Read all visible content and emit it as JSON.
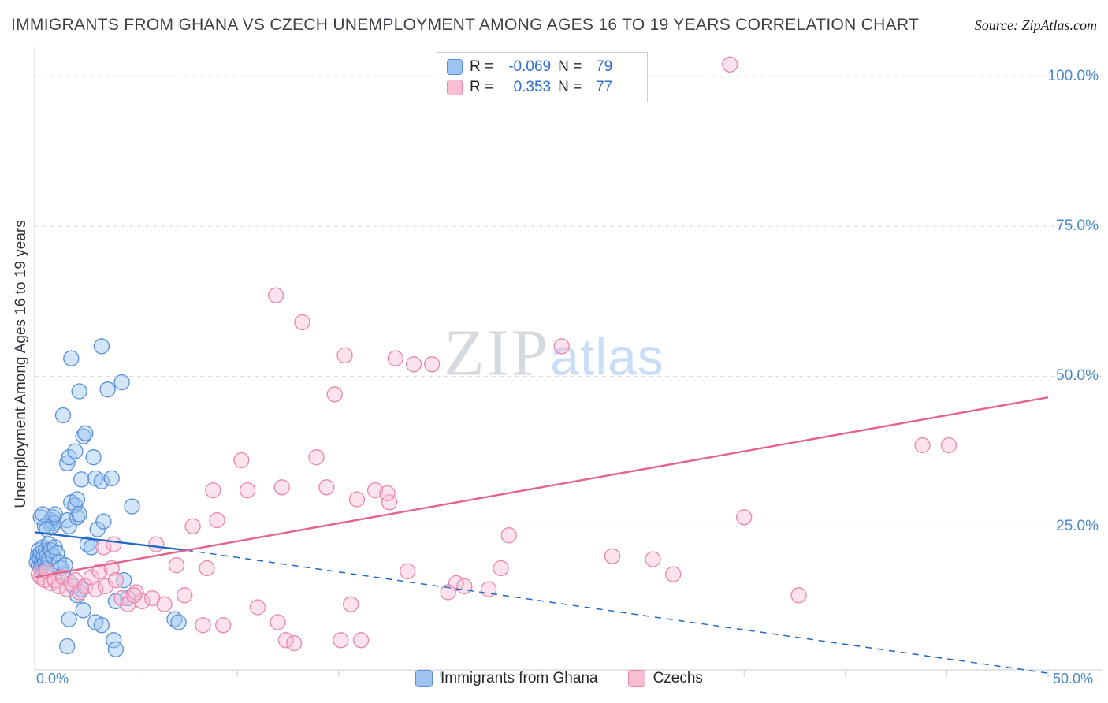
{
  "page": {
    "title": "IMMIGRANTS FROM GHANA VS CZECH UNEMPLOYMENT AMONG AGES 16 TO 19 YEARS CORRELATION CHART",
    "source": "Source: ZipAtlas.com",
    "watermark_zip": "ZIP",
    "watermark_atlas": "atlas"
  },
  "chart_data": {
    "type": "scatter",
    "title": "Immigrants from Ghana vs Czech Unemployment Among Ages 16 to 19 years",
    "xlabel": "Immigrants from Ghana (%)",
    "ylabel": "Unemployment Among Ages 16 to 19 years",
    "xlim": [
      0,
      52.5
    ],
    "ylim": [
      0,
      105
    ],
    "grid": "horizontal-dashed",
    "legend_position": "bottom-center",
    "x_ticks": [
      {
        "value": 0,
        "label": "0.0%"
      },
      {
        "value": 50,
        "label": "50.0%"
      }
    ],
    "y_ticks": [
      {
        "value": 100,
        "label": "100.0%"
      },
      {
        "value": 75,
        "label": "75.0%"
      },
      {
        "value": 50,
        "label": "50.0%"
      },
      {
        "value": 25,
        "label": "25.0%"
      }
    ],
    "stats": [
      {
        "r_label": "R =",
        "r": "-0.069",
        "n_label": "N =",
        "n": "79"
      },
      {
        "r_label": "R =",
        "r": "0.353",
        "n_label": "N =",
        "n": "77"
      }
    ],
    "series": [
      {
        "name": "Immigrants from Ghana",
        "fill": "#9ec5f2",
        "stroke": "#5a8fd8",
        "points": [
          [
            0.1,
            19
          ],
          [
            0.15,
            20
          ],
          [
            0.2,
            18.5
          ],
          [
            0.2,
            21
          ],
          [
            0.25,
            19.5
          ],
          [
            0.3,
            18
          ],
          [
            0.3,
            20.5
          ],
          [
            0.35,
            19
          ],
          [
            0.4,
            18.5
          ],
          [
            0.4,
            21.5
          ],
          [
            0.45,
            20
          ],
          [
            0.5,
            19
          ],
          [
            0.5,
            17.5
          ],
          [
            0.55,
            21
          ],
          [
            0.6,
            20
          ],
          [
            0.6,
            18
          ],
          [
            0.7,
            19.5
          ],
          [
            0.7,
            22
          ],
          [
            0.75,
            25.5
          ],
          [
            0.8,
            26
          ],
          [
            0.85,
            25
          ],
          [
            0.9,
            26.5
          ],
          [
            0.95,
            25.5
          ],
          [
            1.0,
            27
          ],
          [
            0.3,
            26.5
          ],
          [
            0.4,
            27
          ],
          [
            0.5,
            25
          ],
          [
            0.6,
            24.5
          ],
          [
            0.8,
            21
          ],
          [
            0.9,
            20
          ],
          [
            1.0,
            21.5
          ],
          [
            1.1,
            20.5
          ],
          [
            1.2,
            19
          ],
          [
            1.3,
            18
          ],
          [
            1.4,
            17
          ],
          [
            1.5,
            18.5
          ],
          [
            1.6,
            26
          ],
          [
            1.7,
            25
          ],
          [
            1.8,
            29
          ],
          [
            2.0,
            28.5
          ],
          [
            2.1,
            26.5
          ],
          [
            2.2,
            27
          ],
          [
            1.4,
            43.5
          ],
          [
            1.8,
            53
          ],
          [
            2.2,
            47.5
          ],
          [
            3.3,
            55
          ],
          [
            3.6,
            47.8
          ],
          [
            4.3,
            49
          ],
          [
            1.6,
            35.5
          ],
          [
            1.7,
            36.5
          ],
          [
            2.0,
            37.5
          ],
          [
            2.4,
            40
          ],
          [
            2.5,
            40.5
          ],
          [
            2.9,
            36.5
          ],
          [
            3.0,
            33
          ],
          [
            3.3,
            32.5
          ],
          [
            3.8,
            33
          ],
          [
            2.3,
            32.8
          ],
          [
            2.1,
            29.5
          ],
          [
            4.8,
            28.3
          ],
          [
            3.1,
            24.5
          ],
          [
            3.4,
            25.8
          ],
          [
            2.6,
            22
          ],
          [
            2.8,
            21.5
          ],
          [
            1.9,
            15
          ],
          [
            2.1,
            13.5
          ],
          [
            2.4,
            11
          ],
          [
            3.0,
            9
          ],
          [
            3.3,
            8.5
          ],
          [
            1.7,
            9.5
          ],
          [
            3.9,
            6
          ],
          [
            4.0,
            4.5
          ],
          [
            1.6,
            5
          ],
          [
            2.3,
            14.5
          ],
          [
            4.4,
            16
          ],
          [
            4.6,
            13
          ],
          [
            6.9,
            9.5
          ],
          [
            7.1,
            9
          ],
          [
            4.0,
            12.5
          ]
        ]
      },
      {
        "name": "Czechs",
        "fill": "#f8bfd4",
        "stroke": "#ea86ad",
        "points": [
          [
            0.2,
            17
          ],
          [
            0.3,
            16.5
          ],
          [
            0.5,
            16
          ],
          [
            0.6,
            17.5
          ],
          [
            0.8,
            15.5
          ],
          [
            1.0,
            16
          ],
          [
            1.2,
            15
          ],
          [
            1.4,
            16.5
          ],
          [
            1.6,
            14.5
          ],
          [
            1.8,
            15.5
          ],
          [
            2.0,
            16
          ],
          [
            2.2,
            14
          ],
          [
            2.5,
            15
          ],
          [
            2.8,
            16.5
          ],
          [
            3.0,
            14.5
          ],
          [
            3.2,
            17.5
          ],
          [
            3.5,
            15
          ],
          [
            3.8,
            18
          ],
          [
            4.0,
            16
          ],
          [
            4.3,
            13
          ],
          [
            4.6,
            12
          ],
          [
            5.0,
            14
          ],
          [
            5.3,
            12.5
          ],
          [
            3.4,
            21.5
          ],
          [
            3.9,
            22
          ],
          [
            4.9,
            13.5
          ],
          [
            5.8,
            13
          ],
          [
            6.4,
            12
          ],
          [
            7.0,
            18.5
          ],
          [
            7.4,
            13.5
          ],
          [
            8.5,
            18
          ],
          [
            6.0,
            22
          ],
          [
            7.8,
            25
          ],
          [
            9.0,
            26
          ],
          [
            10.5,
            31
          ],
          [
            8.8,
            31
          ],
          [
            12.2,
            31.5
          ],
          [
            10.2,
            36
          ],
          [
            13.9,
            36.5
          ],
          [
            14.8,
            47
          ],
          [
            11.9,
            63.5
          ],
          [
            13.2,
            59
          ],
          [
            15.3,
            53.5
          ],
          [
            17.8,
            53
          ],
          [
            18.7,
            52
          ],
          [
            19.6,
            52
          ],
          [
            16.8,
            31
          ],
          [
            17.5,
            29
          ],
          [
            14.4,
            31.5
          ],
          [
            15.9,
            29.5
          ],
          [
            17.4,
            30.5
          ],
          [
            12.0,
            9
          ],
          [
            11.0,
            11.5
          ],
          [
            9.3,
            8.5
          ],
          [
            8.3,
            8.5
          ],
          [
            12.4,
            6
          ],
          [
            12.8,
            5.5
          ],
          [
            15.1,
            6
          ],
          [
            16.1,
            6
          ],
          [
            15.6,
            12
          ],
          [
            18.4,
            17.5
          ],
          [
            20.8,
            15.5
          ],
          [
            21.2,
            15
          ],
          [
            20.4,
            14
          ],
          [
            22.4,
            14.5
          ],
          [
            23.4,
            23.5
          ],
          [
            26.0,
            55
          ],
          [
            29.2,
            102
          ],
          [
            34.3,
            102
          ],
          [
            23.0,
            18
          ],
          [
            28.5,
            20
          ],
          [
            30.5,
            19.5
          ],
          [
            35.0,
            26.5
          ],
          [
            31.5,
            17
          ],
          [
            37.7,
            13.5
          ],
          [
            43.8,
            38.5
          ],
          [
            45.1,
            38.5
          ]
        ]
      }
    ],
    "trend_lines": [
      {
        "name": "ghana-trend",
        "color": "#2268c8",
        "solid": [
          [
            0,
            24
          ],
          [
            7.5,
            21
          ]
        ],
        "dashed": [
          [
            7.5,
            21
          ],
          [
            50,
            0.5
          ]
        ]
      },
      {
        "name": "czechs-trend",
        "color": "#e4638e",
        "solid": [
          [
            0,
            16.5
          ],
          [
            50,
            46.5
          ]
        ],
        "dashed": null
      }
    ]
  }
}
